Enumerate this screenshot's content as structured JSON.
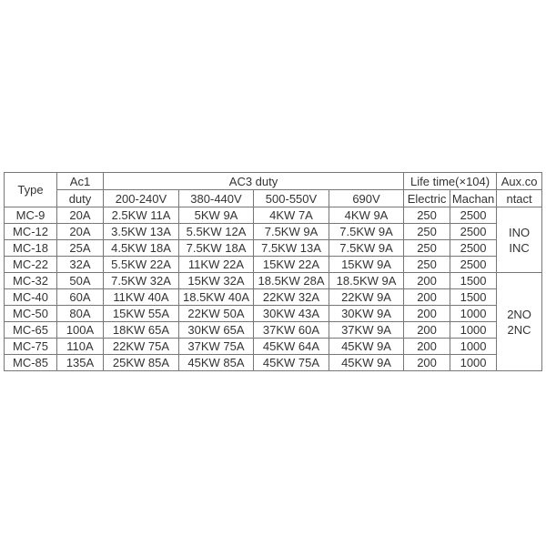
{
  "header": {
    "type": "Type",
    "ac1_line1": "Ac1",
    "ac1_line2": "duty",
    "ac3": "AC3 duty",
    "voltages": [
      "200-240V",
      "380-440V",
      "500-550V",
      "690V"
    ],
    "life": "Life time(×104)",
    "life_sub": [
      "Electric",
      "Machan"
    ],
    "aux_line1": "Aux.co",
    "aux_line2": "ntact"
  },
  "rows": [
    {
      "type": "MC-9",
      "ac1": "20A",
      "v1": "2.5KW 11A",
      "v2": "5KW 9A",
      "v3": "4KW 7A",
      "v4": "4KW 9A",
      "electric": "250",
      "machan": "2500"
    },
    {
      "type": "MC-12",
      "ac1": "20A",
      "v1": "3.5KW 13A",
      "v2": "5.5KW 12A",
      "v3": "7.5KW 9A",
      "v4": "7.5KW 9A",
      "electric": "250",
      "machan": "2500"
    },
    {
      "type": "MC-18",
      "ac1": "25A",
      "v1": "4.5KW 18A",
      "v2": "7.5KW 18A",
      "v3": "7.5KW 13A",
      "v4": "7.5KW 9A",
      "electric": "250",
      "machan": "2500"
    },
    {
      "type": "MC-22",
      "ac1": "32A",
      "v1": "5.5KW 22A",
      "v2": "11KW 22A",
      "v3": "15KW 22A",
      "v4": "15KW 9A",
      "electric": "250",
      "machan": "2500"
    },
    {
      "type": "MC-32",
      "ac1": "50A",
      "v1": "7.5KW 32A",
      "v2": "15KW 32A",
      "v3": "18.5KW 28A",
      "v4": "18.5KW 9A",
      "electric": "200",
      "machan": "1500"
    },
    {
      "type": "MC-40",
      "ac1": "60A",
      "v1": "11KW 40A",
      "v2": "18.5KW 40A",
      "v3": "22KW 32A",
      "v4": "22KW 9A",
      "electric": "200",
      "machan": "1500"
    },
    {
      "type": "MC-50",
      "ac1": "80A",
      "v1": "15KW 55A",
      "v2": "22KW 50A",
      "v3": "30KW 43A",
      "v4": "30KW 9A",
      "electric": "200",
      "machan": "1000"
    },
    {
      "type": "MC-65",
      "ac1": "100A",
      "v1": "18KW 65A",
      "v2": "30KW 65A",
      "v3": "37KW 60A",
      "v4": "37KW 9A",
      "electric": "200",
      "machan": "1000"
    },
    {
      "type": "MC-75",
      "ac1": "110A",
      "v1": "22KW 75A",
      "v2": "37KW 75A",
      "v3": "45KW 64A",
      "v4": "45KW 9A",
      "electric": "200",
      "machan": "1000"
    },
    {
      "type": "MC-85",
      "ac1": "135A",
      "v1": "25KW 85A",
      "v2": "45KW 85A",
      "v3": "45KW 75A",
      "v4": "45KW 9A",
      "electric": "200",
      "machan": "1000"
    }
  ],
  "aux_groups": [
    {
      "line1": "INO",
      "line2": "INC"
    },
    {
      "line1": "2NO",
      "line2": "2NC"
    }
  ]
}
